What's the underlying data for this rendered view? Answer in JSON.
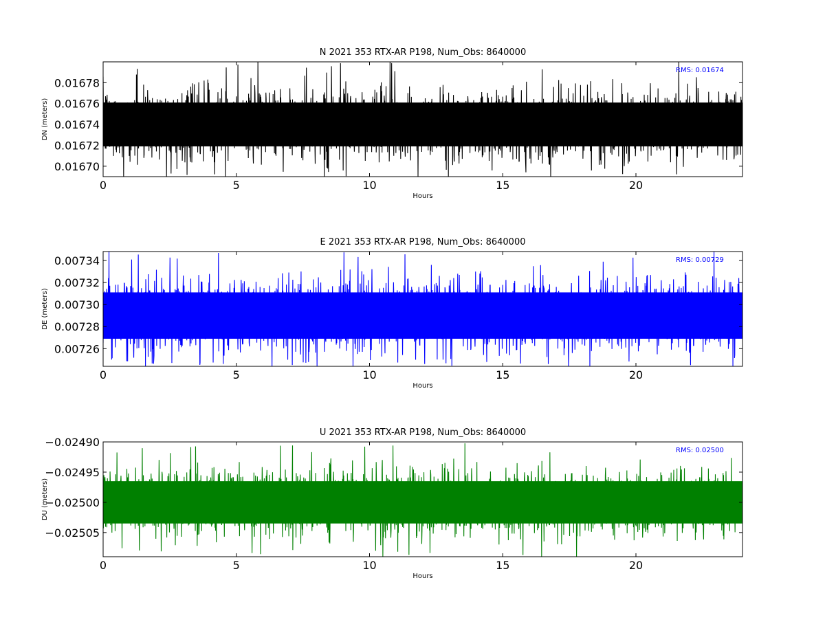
{
  "chart_data": [
    {
      "type": "line",
      "title": "N 2021 353 RTX-AR  P198, Num_Obs: 8640000",
      "xlabel": "Hours",
      "ylabel": "DN (meters)",
      "xlim": [
        0,
        24
      ],
      "ylim": [
        0.01669,
        0.0168
      ],
      "xticks": [
        0,
        5,
        10,
        15,
        20
      ],
      "xtick_labels": [
        "0",
        "5",
        "10",
        "15",
        "20"
      ],
      "yticks": [
        0.0167,
        0.01672,
        0.01674,
        0.01676,
        0.01678
      ],
      "ytick_labels": [
        "0.01670",
        "0.01672",
        "0.01674",
        "0.01676",
        "0.01678"
      ],
      "annotation": "RMS:  0.01674",
      "annotation_color": "#0000ff",
      "series": [
        {
          "color": "#000000",
          "mean": 0.01674,
          "band_low": 0.01671,
          "band_high": 0.01677,
          "min": 0.01669,
          "max": 0.0168
        }
      ],
      "grid": false
    },
    {
      "type": "line",
      "title": "E 2021 353 RTX-AR  P198, Num_Obs: 8640000",
      "xlabel": "Hours",
      "ylabel": "DE (meters)",
      "xlim": [
        0,
        24
      ],
      "ylim": [
        0.007244,
        0.007348
      ],
      "xticks": [
        0,
        5,
        10,
        15,
        20
      ],
      "xtick_labels": [
        "0",
        "5",
        "10",
        "15",
        "20"
      ],
      "yticks": [
        0.00726,
        0.00728,
        0.0073,
        0.00732,
        0.00734
      ],
      "ytick_labels": [
        "0.00726",
        "0.00728",
        "0.00730",
        "0.00732",
        "0.00734"
      ],
      "annotation": "RMS:  0.00729",
      "annotation_color": "#0000ff",
      "series": [
        {
          "color": "#0000ff",
          "mean": 0.00729,
          "band_low": 0.00726,
          "band_high": 0.00732,
          "min": 0.007244,
          "max": 0.007348
        }
      ],
      "grid": false
    },
    {
      "type": "line",
      "title": "U 2021 353 RTX-AR  P198, Num_Obs: 8640000",
      "xlabel": "Hours",
      "ylabel": "DU (meters)",
      "xlim": [
        0,
        24
      ],
      "ylim": [
        -0.02509,
        -0.0249
      ],
      "xticks": [
        0,
        5,
        10,
        15,
        20
      ],
      "xtick_labels": [
        "0",
        "5",
        "10",
        "15",
        "20"
      ],
      "yticks": [
        -0.02505,
        -0.025,
        -0.02495,
        -0.0249
      ],
      "ytick_labels": [
        "−0.02505",
        "−0.02500",
        "−0.02495",
        "−0.02490"
      ],
      "annotation": "RMS:  0.02500",
      "annotation_color": "#0000ff",
      "series": [
        {
          "color": "#008000",
          "mean": -0.025,
          "band_low": -0.02505,
          "band_high": -0.02495,
          "min": -0.02509,
          "max": -0.0249
        }
      ],
      "grid": false
    }
  ]
}
